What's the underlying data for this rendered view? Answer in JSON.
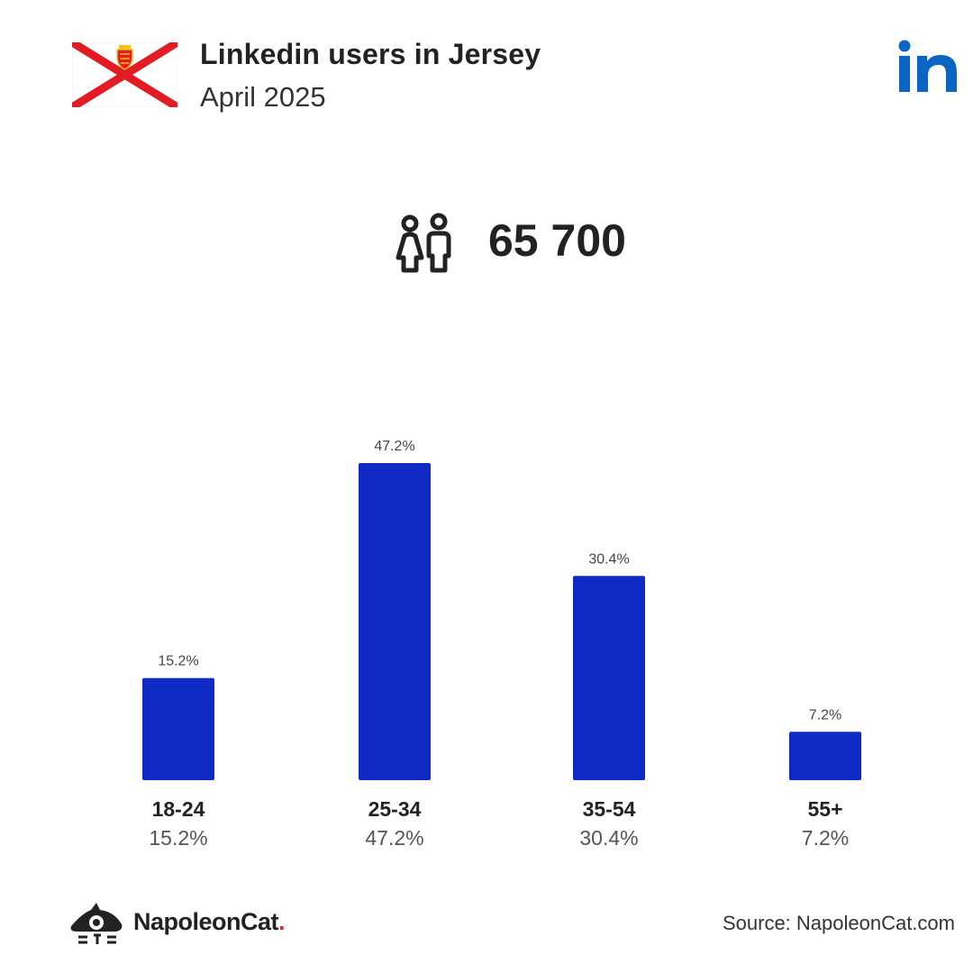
{
  "header": {
    "title": "Linkedin users in Jersey",
    "subtitle": "April 2025"
  },
  "total_users": "65 700",
  "colors": {
    "bar": "#0f2bc4",
    "flag_red": "#e31b23",
    "linkedin_blue": "#0a66c2",
    "text": "#222222"
  },
  "icons": {
    "flag": "jersey-flag-icon",
    "brand": "linkedin-logo-icon",
    "users": "users-icon",
    "footer": "napoleoncat-logo-icon"
  },
  "chart_data": {
    "type": "bar",
    "categories": [
      "18-24",
      "25-34",
      "35-54",
      "55+"
    ],
    "values": [
      15.2,
      47.2,
      30.4,
      7.2
    ],
    "value_labels": [
      "15.2%",
      "47.2%",
      "30.4%",
      "7.2%"
    ],
    "unit": "%",
    "ylim": [
      0,
      47.2
    ],
    "grid": false
  },
  "footer": {
    "brand": "NapoleonCat",
    "brand_dot": ".",
    "source": "Source: NapoleonCat.com"
  }
}
